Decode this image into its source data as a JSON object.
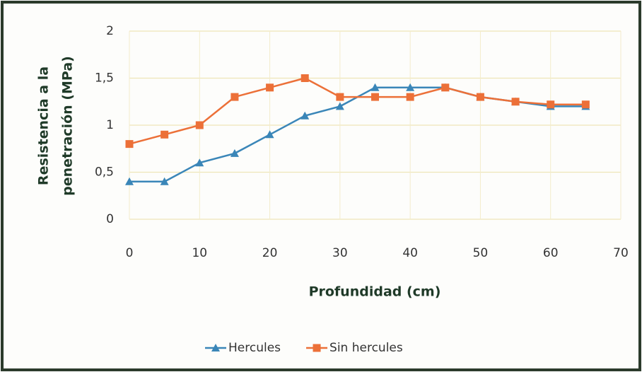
{
  "chart_data": {
    "type": "line",
    "xlabel": "Profundidad (cm)",
    "ylabel": [
      "Resistencia  a la",
      "penetración (MPa)"
    ],
    "x": [
      0,
      5,
      10,
      15,
      20,
      25,
      30,
      35,
      40,
      45,
      50,
      55,
      60,
      65
    ],
    "series": [
      {
        "name": "Hercules",
        "color": "#3a86b8",
        "marker": "triangle",
        "values": [
          0.4,
          0.4,
          0.6,
          0.7,
          0.9,
          1.1,
          1.2,
          1.4,
          1.4,
          1.4,
          1.3,
          1.25,
          1.2,
          1.2
        ]
      },
      {
        "name": "Sin hercules",
        "color": "#ec7038",
        "marker": "square",
        "values": [
          0.8,
          0.9,
          1.0,
          1.3,
          1.4,
          1.5,
          1.3,
          1.3,
          1.3,
          1.4,
          1.3,
          1.25,
          1.22,
          1.22
        ]
      }
    ],
    "xlim": [
      0,
      70
    ],
    "xticks": [
      0,
      10,
      20,
      30,
      40,
      50,
      60,
      70
    ],
    "ylim": [
      0,
      2
    ],
    "yticks": [
      0,
      {
        "value": 0.5,
        "label": "0,5"
      },
      1,
      {
        "value": 1.5,
        "label": "1,5"
      },
      2
    ],
    "grid": true,
    "legend": "bottom"
  }
}
